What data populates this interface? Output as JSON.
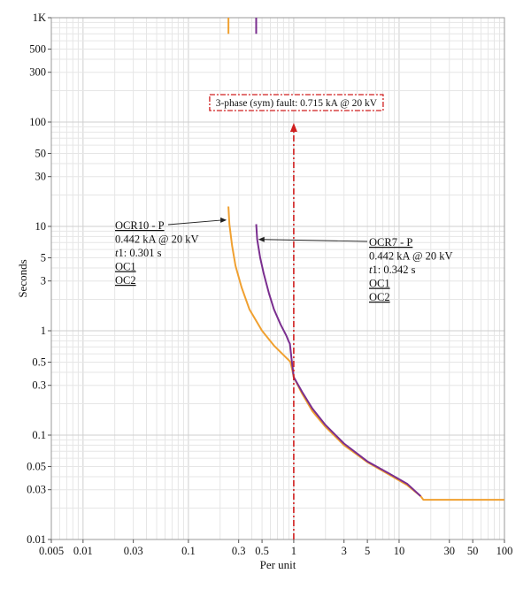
{
  "chart_data": {
    "type": "line",
    "xlabel": "Per unit",
    "ylabel": "Seconds",
    "x_scale": "log",
    "y_scale": "log",
    "xlim": [
      0.005,
      100
    ],
    "ylim": [
      0.01,
      1000
    ],
    "grid": true,
    "x_ticks": [
      {
        "v": 0.005,
        "label": "0.005"
      },
      {
        "v": 0.01,
        "label": "0.01"
      },
      {
        "v": 0.03,
        "label": "0.03"
      },
      {
        "v": 0.1,
        "label": "0.1"
      },
      {
        "v": 0.3,
        "label": "0.3"
      },
      {
        "v": 0.5,
        "label": "0.5"
      },
      {
        "v": 1,
        "label": "1"
      },
      {
        "v": 3,
        "label": "3"
      },
      {
        "v": 5,
        "label": "5"
      },
      {
        "v": 10,
        "label": "10"
      },
      {
        "v": 30,
        "label": "30"
      },
      {
        "v": 50,
        "label": "50"
      },
      {
        "v": 100,
        "label": "100"
      }
    ],
    "y_ticks": [
      {
        "v": 0.01,
        "label": "0.01"
      },
      {
        "v": 0.03,
        "label": "0.03"
      },
      {
        "v": 0.05,
        "label": "0.05"
      },
      {
        "v": 0.1,
        "label": "0.1"
      },
      {
        "v": 0.3,
        "label": "0.3"
      },
      {
        "v": 0.5,
        "label": "0.5"
      },
      {
        "v": 1,
        "label": "1"
      },
      {
        "v": 3,
        "label": "3"
      },
      {
        "v": 5,
        "label": "5"
      },
      {
        "v": 10,
        "label": "10"
      },
      {
        "v": 30,
        "label": "30"
      },
      {
        "v": 50,
        "label": "50"
      },
      {
        "v": 100,
        "label": "100"
      },
      {
        "v": 300,
        "label": "300"
      },
      {
        "v": 500,
        "label": "500"
      },
      {
        "v": 1000,
        "label": "1K"
      }
    ],
    "series": [
      {
        "color": "#f0a030",
        "points": [
          [
            0.24,
            15.5
          ],
          [
            0.245,
            10.5
          ],
          [
            0.26,
            6.5
          ],
          [
            0.28,
            4.2
          ],
          [
            0.32,
            2.6
          ],
          [
            0.38,
            1.6
          ],
          [
            0.5,
            1.0
          ],
          [
            0.65,
            0.72
          ],
          [
            0.85,
            0.55
          ],
          [
            0.9,
            0.52
          ],
          [
            0.93,
            0.5
          ],
          [
            0.97,
            0.42
          ],
          [
            1.0,
            0.36
          ],
          [
            1.2,
            0.25
          ],
          [
            1.5,
            0.17
          ],
          [
            2,
            0.12
          ],
          [
            3,
            0.08
          ],
          [
            5,
            0.055
          ],
          [
            8,
            0.042
          ],
          [
            12,
            0.033
          ],
          [
            16,
            0.026
          ],
          [
            17,
            0.024
          ],
          [
            20,
            0.024
          ],
          [
            50,
            0.024
          ],
          [
            100,
            0.024
          ]
        ],
        "top_segment": {
          "x": 0.24,
          "y_from": 700,
          "y_to": 1000
        }
      },
      {
        "color": "#7a2e8f",
        "points": [
          [
            0.44,
            10.5
          ],
          [
            0.45,
            7.5
          ],
          [
            0.48,
            5.0
          ],
          [
            0.52,
            3.5
          ],
          [
            0.58,
            2.3
          ],
          [
            0.65,
            1.6
          ],
          [
            0.75,
            1.15
          ],
          [
            0.85,
            0.9
          ],
          [
            0.9,
            0.78
          ],
          [
            0.92,
            0.75
          ],
          [
            0.95,
            0.55
          ],
          [
            1.0,
            0.36
          ],
          [
            1.2,
            0.26
          ],
          [
            1.5,
            0.18
          ],
          [
            2,
            0.125
          ],
          [
            3,
            0.083
          ],
          [
            5,
            0.056
          ],
          [
            8,
            0.043
          ],
          [
            12,
            0.034
          ],
          [
            16,
            0.026
          ]
        ],
        "top_segment": {
          "x": 0.44,
          "y_from": 700,
          "y_to": 1000
        }
      }
    ],
    "fault_line": {
      "x": 1.0,
      "color": "#d01f1f",
      "label": "3-phase (sym) fault: 0.715 kA @ 20 kV"
    },
    "annotations": [
      {
        "lines": [
          "OCR10 - P",
          "0.442 kA @ 20 kV",
          "t1: 0.301 s",
          "OC1",
          "OC2"
        ],
        "arrow_to": [
          0.24,
          11.5
        ]
      },
      {
        "lines": [
          "OCR7 - P",
          "0.442 kA @ 20 kV",
          "t1: 0.342 s",
          "OC1",
          "OC2"
        ],
        "arrow_to": [
          0.46,
          7.5
        ]
      }
    ]
  }
}
